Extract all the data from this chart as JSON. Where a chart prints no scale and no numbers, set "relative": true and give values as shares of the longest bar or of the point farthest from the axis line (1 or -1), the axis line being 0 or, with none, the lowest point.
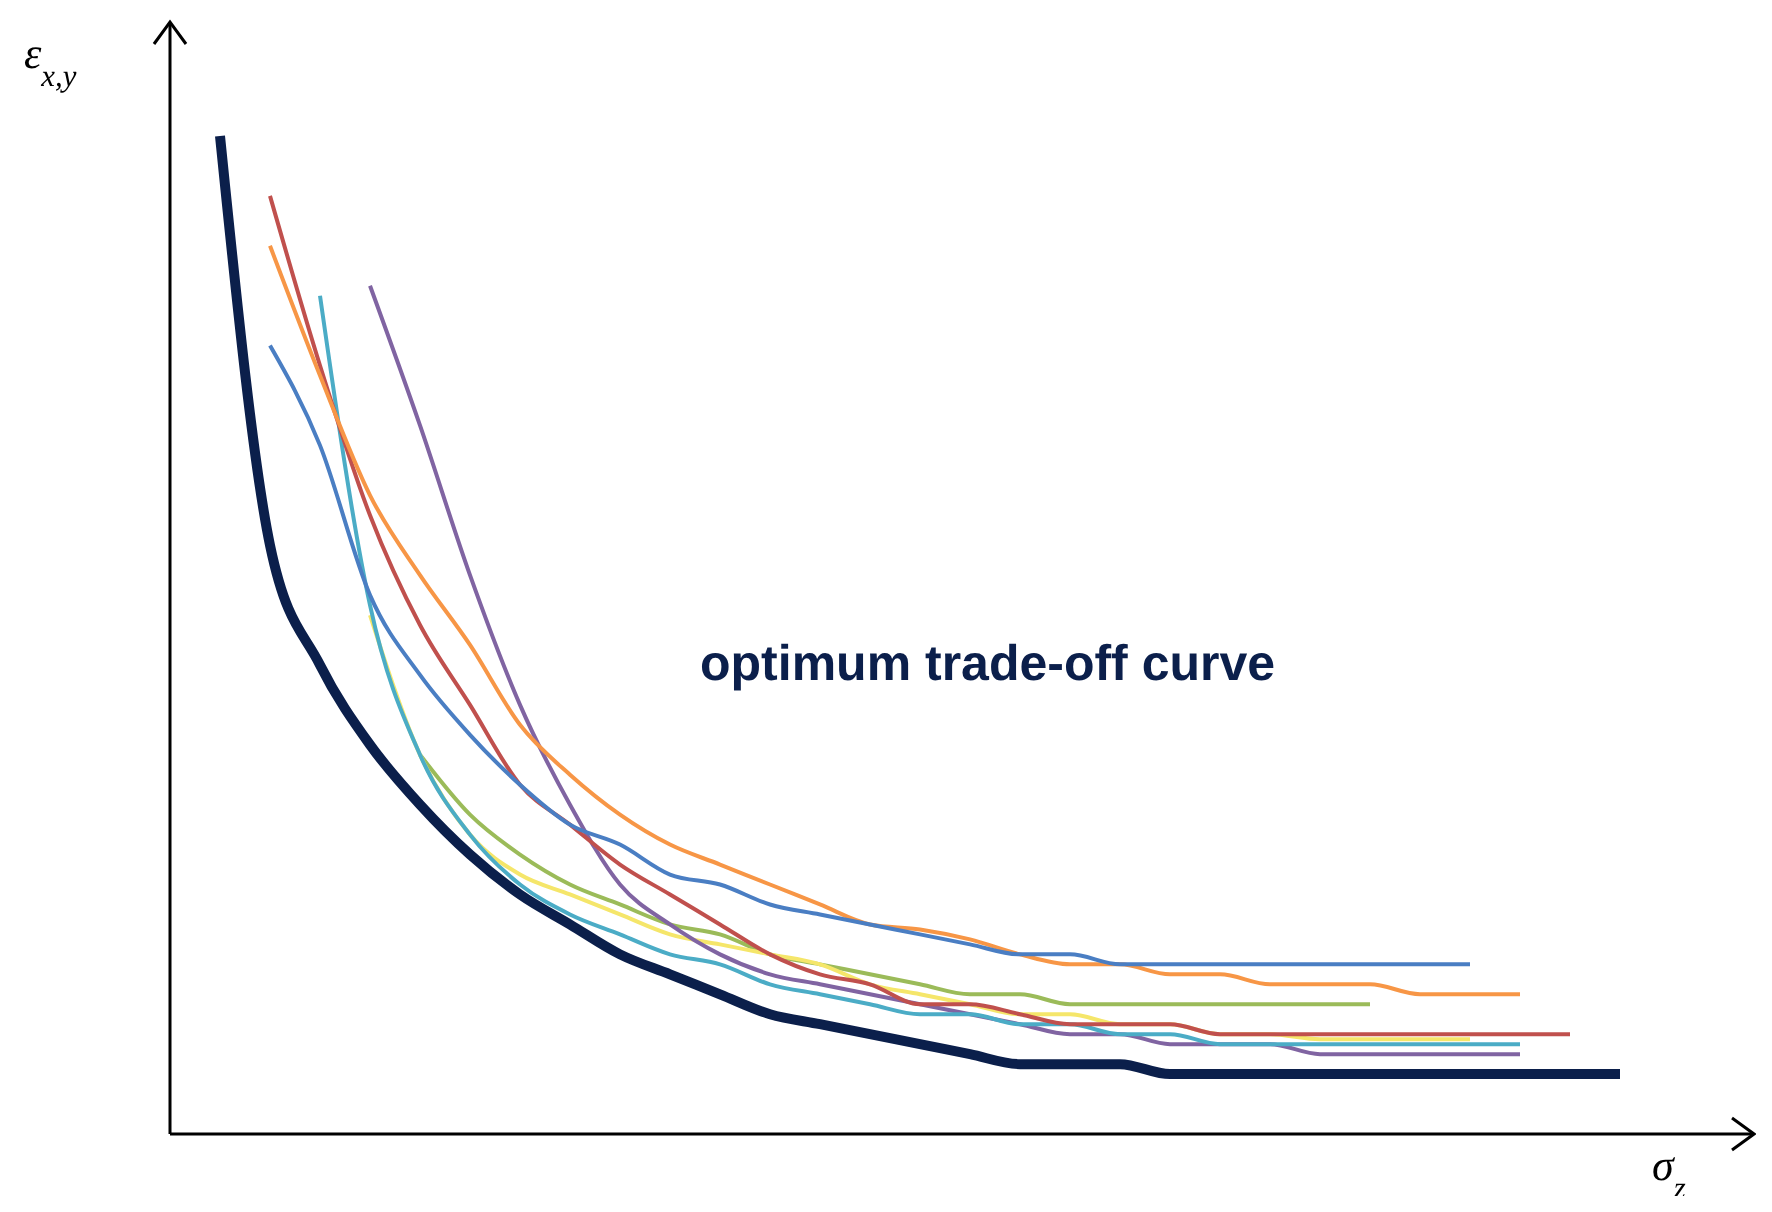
{
  "chart_data": {
    "type": "line",
    "relative": true,
    "xlabel": "σ$_{z}$",
    "ylabel": "ε$_{x,y}$",
    "annotations": [
      "optimum trade-off curve"
    ],
    "categories": [
      null,
      null,
      null,
      null,
      null,
      null,
      null,
      null,
      null,
      null,
      null,
      null,
      null,
      null,
      null,
      null,
      null,
      null,
      null,
      null,
      null,
      null,
      null,
      null,
      null,
      null,
      null,
      null,
      null
    ],
    "series": [
      {
        "color": "#0b1f4b",
        "values": [
          1,
          0.59,
          0.47,
          0.39,
          0.33,
          0.28,
          0.24,
          0.21,
          0.18,
          0.16,
          0.14,
          0.12,
          0.11,
          0.1,
          0.09,
          0.08,
          0.07,
          0.07,
          0.07,
          0.06,
          0.06,
          0.06,
          0.06,
          0.06,
          0.06,
          0.06,
          0.06,
          0.06,
          0.06
        ]
      },
      {
        "color": "#4a7ec3",
        "values": [
          null,
          0.79,
          0.69,
          0.54,
          0.46,
          0.4,
          0.35,
          0.31,
          0.29,
          0.26,
          0.25,
          0.23,
          0.22,
          0.21,
          0.2,
          0.19,
          0.18,
          0.18,
          0.17,
          0.17,
          0.17,
          0.17,
          0.17,
          0.17,
          0.17,
          0.17,
          null,
          null,
          null
        ]
      },
      {
        "color": "#f79646",
        "values": [
          null,
          0.89,
          0.76,
          0.64,
          0.56,
          0.49,
          0.41,
          0.36,
          0.32,
          0.29,
          0.27,
          0.25,
          0.23,
          0.21,
          0.205,
          0.195,
          0.18,
          0.17,
          0.17,
          0.16,
          0.16,
          0.15,
          0.15,
          0.15,
          0.14,
          0.14,
          0.14,
          null,
          null
        ]
      },
      {
        "color": "#c0504d",
        "values": [
          null,
          0.94,
          0.77,
          0.62,
          0.51,
          0.43,
          0.35,
          0.31,
          0.27,
          0.24,
          0.21,
          0.18,
          0.16,
          0.15,
          0.13,
          0.13,
          0.12,
          0.11,
          0.11,
          0.11,
          0.1,
          0.1,
          0.1,
          0.1,
          0.1,
          0.1,
          0.1,
          0.1,
          null
        ]
      },
      {
        "color": "#4bacc6",
        "values": [
          null,
          null,
          0.84,
          0.53,
          0.38,
          0.3,
          0.25,
          0.22,
          0.2,
          0.18,
          0.17,
          0.15,
          0.14,
          0.13,
          0.12,
          0.12,
          0.11,
          0.11,
          0.1,
          0.1,
          0.09,
          0.09,
          0.09,
          0.09,
          0.09,
          0.09,
          0.09,
          null,
          null
        ]
      },
      {
        "color": "#8064a2",
        "values": [
          null,
          null,
          null,
          0.85,
          0.71,
          0.56,
          0.43,
          0.33,
          0.25,
          0.21,
          0.18,
          0.16,
          0.15,
          0.14,
          0.13,
          0.12,
          0.11,
          0.1,
          0.1,
          0.09,
          0.09,
          0.09,
          0.08,
          0.08,
          0.08,
          0.08,
          0.08,
          null,
          null
        ]
      },
      {
        "color": "#f5e66a",
        "values": [
          null,
          null,
          null,
          0.52,
          0.38,
          0.3,
          0.26,
          0.24,
          0.22,
          0.2,
          0.19,
          0.18,
          0.17,
          0.15,
          0.14,
          0.13,
          0.12,
          0.12,
          0.11,
          0.11,
          0.1,
          0.1,
          0.095,
          0.095,
          0.095,
          0.095,
          null,
          null,
          null
        ]
      },
      {
        "color": "#9bbb59",
        "values": [
          null,
          null,
          null,
          null,
          0.38,
          0.32,
          0.28,
          0.25,
          0.23,
          0.21,
          0.2,
          0.18,
          0.17,
          0.16,
          0.15,
          0.14,
          0.14,
          0.13,
          0.13,
          0.13,
          0.13,
          0.13,
          0.13,
          0.13,
          null,
          null,
          null,
          null,
          null
        ]
      }
    ]
  }
}
